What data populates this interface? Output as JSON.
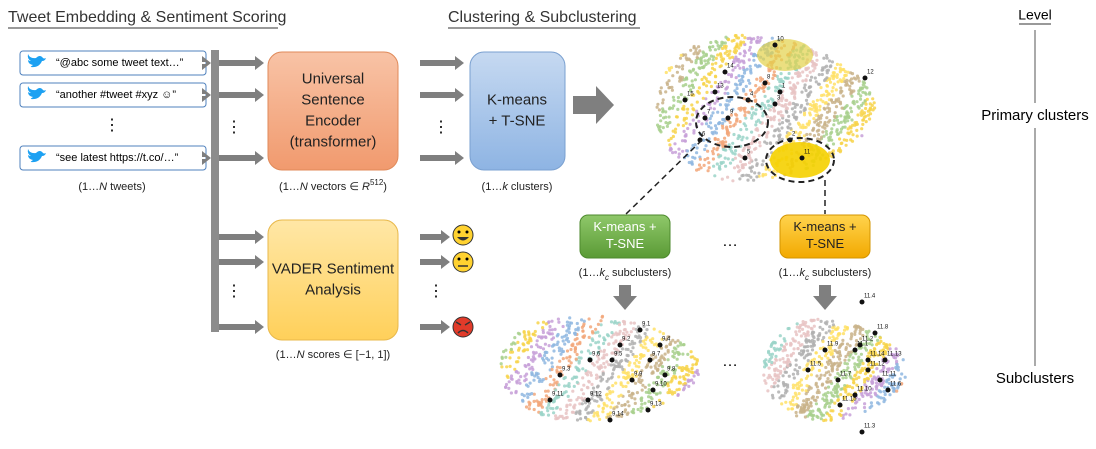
{
  "header": {
    "left_title": "Tweet Embedding & Sentiment Scoring",
    "right_title": "Clustering & Subclustering",
    "level": "Level"
  },
  "tweets": {
    "items": [
      "“@abc some tweet text…”",
      "“another #tweet #xyz ☺”",
      "“see latest https://t.co/…”"
    ],
    "vdots": "⋮",
    "caption": {
      "pre": "(1…",
      "var": "N",
      "post": " tweets)"
    }
  },
  "encoder": {
    "lines": [
      "Universal",
      "Sentence",
      "Encoder",
      "(transformer)"
    ],
    "caption": {
      "pre": "(1…",
      "var": "N",
      "mid": " vectors ∈ ",
      "math": "R",
      "sup": "512",
      "post": ")"
    }
  },
  "vader": {
    "lines": [
      "VADER Sentiment",
      "Analysis"
    ],
    "caption": {
      "pre": "(1…",
      "var": "N",
      "post": " scores ∈ [−1, 1])"
    }
  },
  "kmeans": {
    "lines": [
      "K-means",
      "+ T-SNE"
    ],
    "caption": {
      "pre": "(1…",
      "var": "k",
      "post": " clusters)"
    }
  },
  "subclustering": [
    {
      "lines": [
        "K-means +",
        "T-SNE"
      ],
      "caption": {
        "pre": "(1…",
        "var": "k",
        "sub": "c",
        "post": " subclusters)"
      }
    },
    {
      "lines": [
        "K-means +",
        "T-SNE"
      ],
      "caption": {
        "pre": "(1…",
        "var": "k",
        "sub": "c",
        "post": " subclusters)"
      }
    }
  ],
  "ellipsis": "…",
  "vdots": "⋮",
  "primary_clusters": {
    "labels": [
      "10",
      "12",
      "14",
      "8",
      "13",
      "15",
      "1",
      "7",
      "4",
      "9",
      "3",
      "2",
      "11",
      "5",
      "6"
    ]
  },
  "subclusters_left": {
    "labels": [
      "9.1",
      "9.2",
      "9.3",
      "9.4",
      "9.5",
      "9.6",
      "9.7",
      "9.8",
      "9.9",
      "9.10",
      "9.11",
      "9.12",
      "9.13",
      "9.14"
    ]
  },
  "subclusters_right": {
    "labels": [
      "11.4",
      "11.8",
      "11.9",
      "11.1",
      "11.14",
      "11.2",
      "11.13",
      "11.5",
      "11.7",
      "11.12",
      "11.11",
      "11.6",
      "11.10",
      "11.15",
      "11.3"
    ]
  },
  "levels": [
    "Primary clusters",
    "Subclusters"
  ]
}
